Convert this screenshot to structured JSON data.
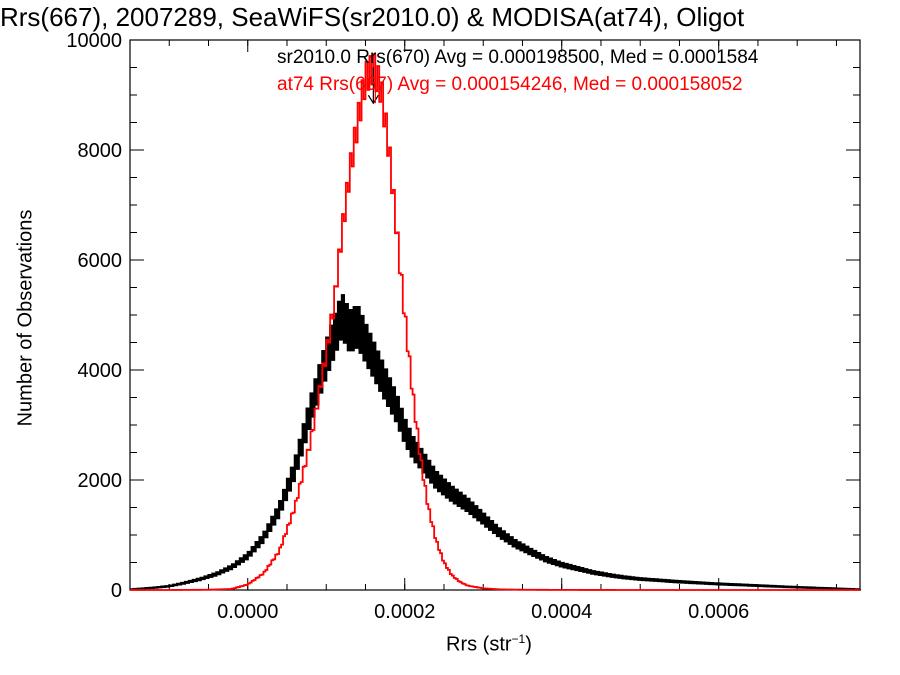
{
  "chart_data": {
    "type": "line",
    "title": "Rrs(667), 2007289, SeaWiFS(sr2010.0) & MODISA(at74), Oligot",
    "xlabel": "Rrs (str",
    "xlabel_sup": "−1",
    "xlabel_close": ")",
    "ylabel": "Number of Observations",
    "xlim": [
      -0.00015,
      0.00078
    ],
    "ylim": [
      0,
      10000
    ],
    "x_ticks": [
      0.0,
      0.0002,
      0.0004,
      0.0006
    ],
    "x_tick_labels": [
      "0.0000",
      "0.0002",
      "0.0004",
      "0.0006"
    ],
    "y_ticks": [
      0,
      2000,
      4000,
      6000,
      8000,
      10000
    ],
    "y_tick_labels": [
      "0",
      "2000",
      "4000",
      "6000",
      "8000",
      "10000"
    ],
    "annotations": [
      "sr2010.0 Rrs(670) Avg = 0.000198500, Med = 0.0001584",
      "at74 Rrs(667) Avg = 0.000154246, Med = 0.000158052"
    ],
    "series": [
      {
        "color": "#000000",
        "x": [
          -0.00015,
          -0.00012,
          -0.0001,
          -8e-05,
          -6e-05,
          -4e-05,
          -2e-05,
          0.0,
          2e-05,
          4e-05,
          6e-05,
          8e-05,
          0.0001,
          0.00011,
          0.00012,
          0.00013,
          0.00014,
          0.00015,
          0.00016,
          0.00017,
          0.00018,
          0.00019,
          0.0002,
          0.00021,
          0.00022,
          0.00023,
          0.00024,
          0.00026,
          0.00028,
          0.0003,
          0.00032,
          0.00034,
          0.00036,
          0.00038,
          0.0004,
          0.00042,
          0.00044,
          0.00046,
          0.00048,
          0.0005,
          0.00055,
          0.0006,
          0.00065,
          0.0007,
          0.00075,
          0.00078
        ],
        "values": [
          10,
          40,
          70,
          130,
          200,
          290,
          420,
          620,
          950,
          1450,
          2200,
          3250,
          4200,
          4600,
          5000,
          4700,
          4800,
          4500,
          4200,
          3900,
          3600,
          3300,
          2900,
          2600,
          2400,
          2200,
          2000,
          1750,
          1550,
          1300,
          1050,
          850,
          700,
          560,
          460,
          390,
          320,
          270,
          230,
          200,
          150,
          110,
          80,
          50,
          25,
          10
        ]
      },
      {
        "color": "#ff0000",
        "x": [
          -0.00015,
          -0.0001,
          -5e-05,
          -2e-05,
          0.0,
          2e-05,
          4e-05,
          6e-05,
          8e-05,
          0.0001,
          0.00011,
          0.00012,
          0.00013,
          0.00014,
          0.00015,
          0.00016,
          0.00017,
          0.00018,
          0.00019,
          0.0002,
          0.00021,
          0.00022,
          0.00023,
          0.00024,
          0.00025,
          0.00026,
          0.00027,
          0.00028,
          0.0003,
          0.00032,
          0.00035,
          0.0004,
          0.0005,
          0.00078
        ],
        "values": [
          0,
          0,
          5,
          20,
          100,
          300,
          700,
          1500,
          2700,
          4300,
          5200,
          6500,
          7600,
          8500,
          9300,
          9500,
          9100,
          8000,
          6500,
          5000,
          3600,
          2400,
          1500,
          900,
          500,
          270,
          150,
          80,
          30,
          12,
          5,
          2,
          0,
          0
        ]
      }
    ]
  }
}
